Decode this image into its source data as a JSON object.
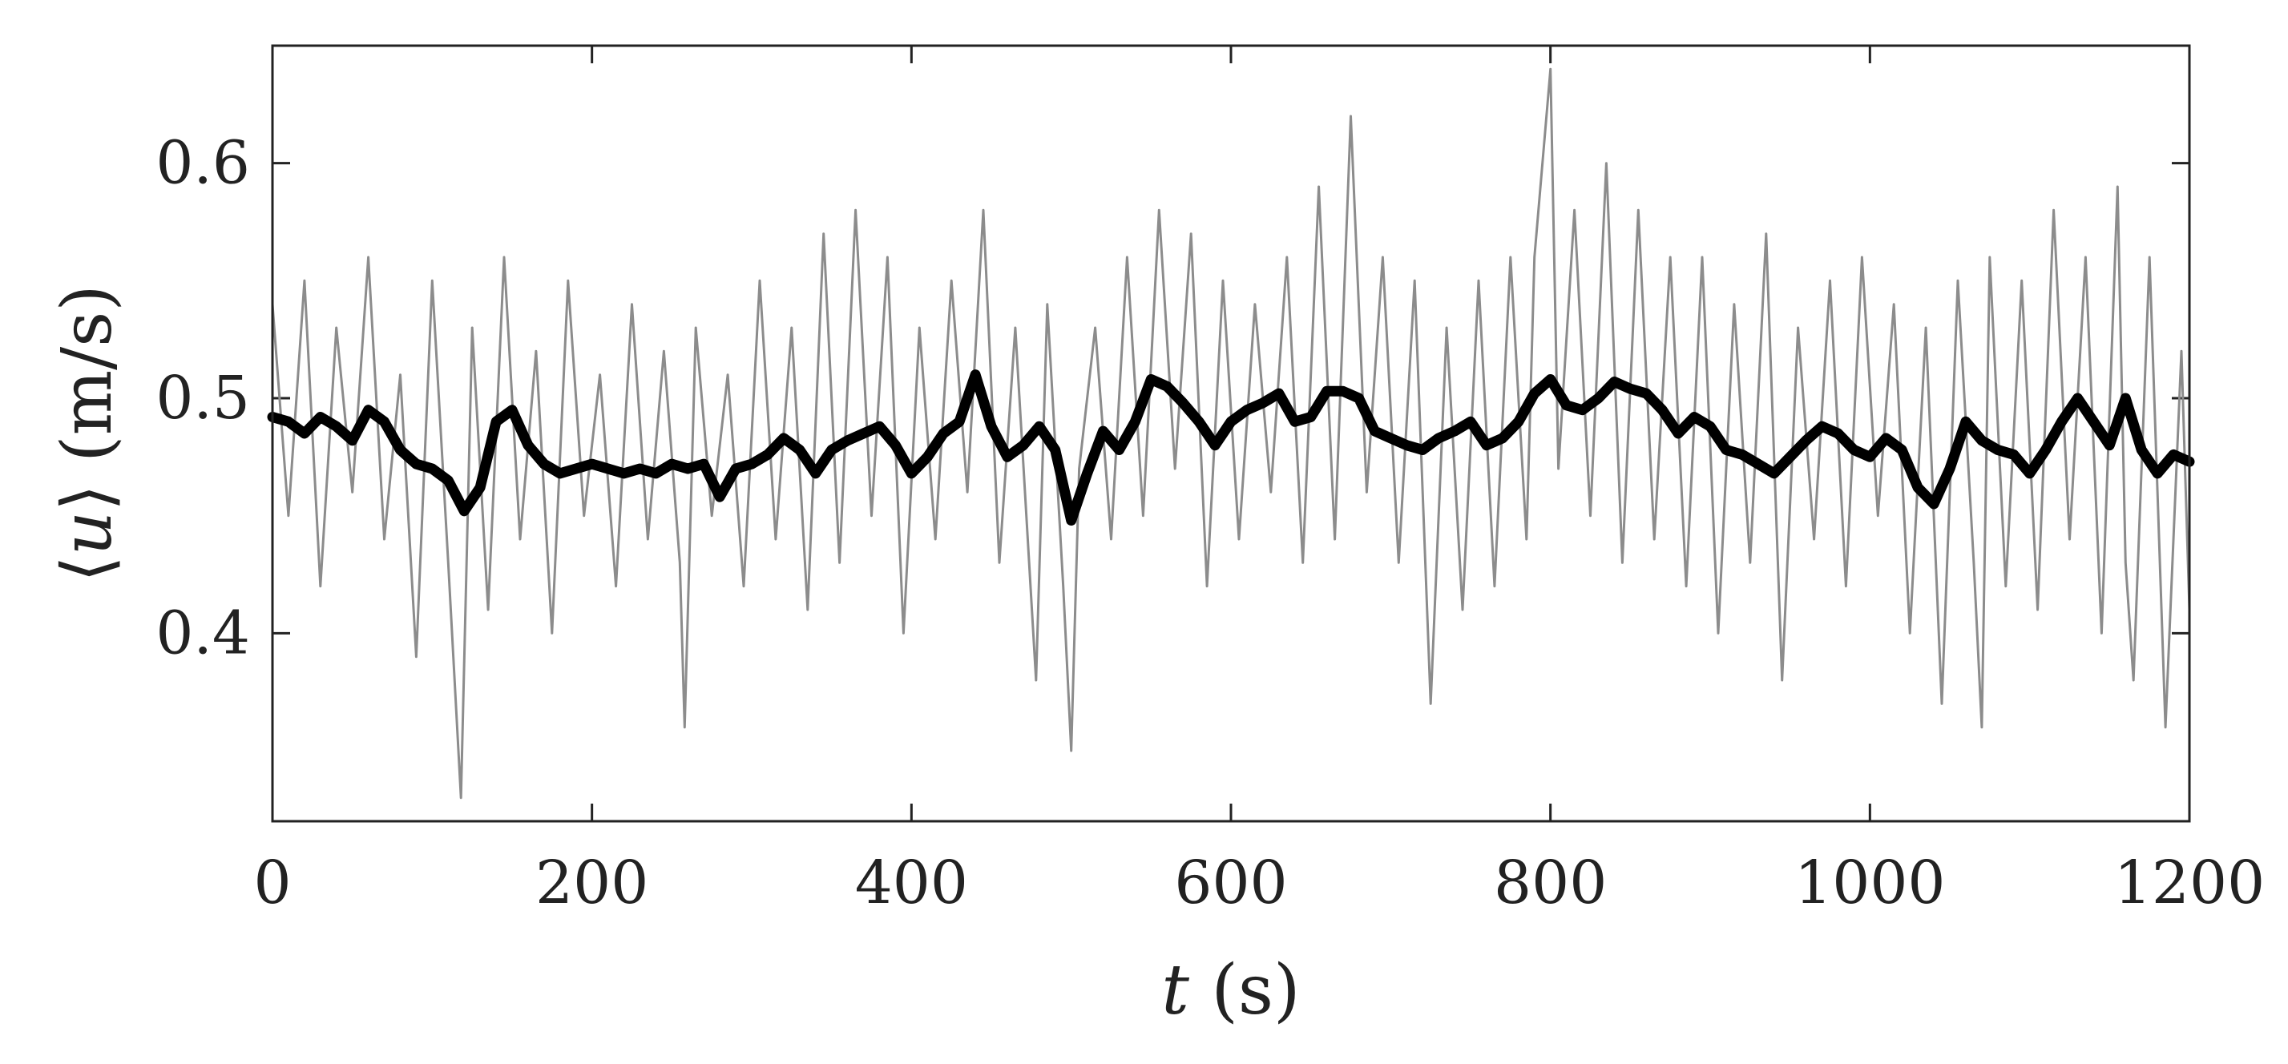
{
  "chart_data": {
    "type": "line",
    "title": "",
    "xlabel": {
      "var": "t",
      "unit": " (s)"
    },
    "ylabel": {
      "open": "⟨",
      "var": "u",
      "close": "⟩",
      "unit": " (m/s)"
    },
    "xlim": [
      0,
      1200
    ],
    "ylim": [
      0.32,
      0.65
    ],
    "xticks": [
      0,
      200,
      400,
      600,
      800,
      1000,
      1200
    ],
    "xtick_labels": [
      "0",
      "200",
      "400",
      "600",
      "800",
      "1000",
      "1200"
    ],
    "yticks": [
      0.4,
      0.5,
      0.6
    ],
    "ytick_labels": [
      "0.4",
      "0.5",
      "0.6"
    ],
    "grid": false,
    "legend": "none",
    "colors": {
      "raw": "#8c8c8c",
      "smoothed": "#000000",
      "axes": "#222222"
    },
    "series": [
      {
        "style": "raw-thin-gray",
        "x": [
          0,
          10,
          20,
          30,
          40,
          50,
          60,
          70,
          80,
          90,
          100,
          110,
          118,
          125,
          135,
          145,
          155,
          165,
          175,
          185,
          195,
          205,
          215,
          225,
          235,
          245,
          255,
          258,
          265,
          275,
          285,
          295,
          305,
          315,
          325,
          335,
          345,
          355,
          365,
          375,
          385,
          395,
          405,
          415,
          425,
          435,
          445,
          455,
          465,
          478,
          485,
          495,
          500,
          505,
          515,
          525,
          535,
          545,
          555,
          565,
          575,
          585,
          595,
          605,
          615,
          625,
          635,
          645,
          655,
          665,
          675,
          685,
          695,
          705,
          715,
          725,
          735,
          745,
          755,
          765,
          775,
          785,
          790,
          800,
          805,
          815,
          825,
          835,
          845,
          855,
          865,
          875,
          885,
          895,
          905,
          915,
          925,
          935,
          945,
          955,
          965,
          975,
          985,
          995,
          1005,
          1015,
          1025,
          1035,
          1045,
          1055,
          1065,
          1070,
          1075,
          1085,
          1095,
          1105,
          1115,
          1125,
          1135,
          1145,
          1155,
          1160,
          1165,
          1175,
          1185,
          1195,
          1200
        ],
        "y": [
          0.54,
          0.45,
          0.55,
          0.42,
          0.53,
          0.46,
          0.56,
          0.44,
          0.51,
          0.39,
          0.55,
          0.43,
          0.33,
          0.53,
          0.41,
          0.56,
          0.44,
          0.52,
          0.4,
          0.55,
          0.45,
          0.51,
          0.42,
          0.54,
          0.44,
          0.52,
          0.43,
          0.36,
          0.53,
          0.45,
          0.51,
          0.42,
          0.55,
          0.44,
          0.53,
          0.41,
          0.57,
          0.43,
          0.58,
          0.45,
          0.56,
          0.4,
          0.53,
          0.44,
          0.55,
          0.46,
          0.58,
          0.43,
          0.53,
          0.38,
          0.54,
          0.42,
          0.35,
          0.47,
          0.53,
          0.44,
          0.56,
          0.45,
          0.58,
          0.47,
          0.57,
          0.42,
          0.55,
          0.44,
          0.54,
          0.46,
          0.56,
          0.43,
          0.59,
          0.44,
          0.62,
          0.46,
          0.56,
          0.43,
          0.55,
          0.37,
          0.53,
          0.41,
          0.55,
          0.42,
          0.56,
          0.44,
          0.56,
          0.64,
          0.47,
          0.58,
          0.45,
          0.6,
          0.43,
          0.58,
          0.44,
          0.56,
          0.42,
          0.56,
          0.4,
          0.54,
          0.43,
          0.57,
          0.38,
          0.53,
          0.44,
          0.55,
          0.42,
          0.56,
          0.45,
          0.54,
          0.4,
          0.53,
          0.37,
          0.55,
          0.43,
          0.36,
          0.56,
          0.42,
          0.55,
          0.41,
          0.58,
          0.44,
          0.56,
          0.4,
          0.59,
          0.43,
          0.38,
          0.56,
          0.36,
          0.52,
          0.41
        ]
      },
      {
        "style": "smoothed-thick-black",
        "x": [
          0,
          10,
          20,
          30,
          40,
          50,
          60,
          70,
          80,
          90,
          100,
          110,
          120,
          130,
          140,
          150,
          160,
          170,
          180,
          190,
          200,
          210,
          220,
          230,
          240,
          250,
          260,
          270,
          280,
          290,
          300,
          310,
          320,
          330,
          340,
          350,
          360,
          370,
          380,
          390,
          400,
          410,
          420,
          430,
          440,
          450,
          460,
          470,
          480,
          490,
          500,
          510,
          520,
          530,
          540,
          550,
          560,
          570,
          580,
          590,
          600,
          610,
          620,
          630,
          640,
          650,
          660,
          670,
          680,
          690,
          700,
          710,
          720,
          730,
          740,
          750,
          760,
          770,
          780,
          790,
          800,
          810,
          820,
          830,
          840,
          850,
          860,
          870,
          880,
          890,
          900,
          910,
          920,
          930,
          940,
          950,
          960,
          970,
          980,
          990,
          1000,
          1010,
          1020,
          1030,
          1040,
          1050,
          1060,
          1070,
          1080,
          1090,
          1100,
          1110,
          1120,
          1130,
          1140,
          1150,
          1160,
          1170,
          1180,
          1190,
          1200
        ],
        "y": [
          0.492,
          0.49,
          0.485,
          0.492,
          0.488,
          0.482,
          0.495,
          0.49,
          0.478,
          0.472,
          0.47,
          0.465,
          0.452,
          0.462,
          0.49,
          0.495,
          0.48,
          0.472,
          0.468,
          0.47,
          0.472,
          0.47,
          0.468,
          0.47,
          0.468,
          0.472,
          0.47,
          0.472,
          0.458,
          0.47,
          0.472,
          0.476,
          0.483,
          0.478,
          0.468,
          0.478,
          0.482,
          0.485,
          0.488,
          0.48,
          0.468,
          0.475,
          0.485,
          0.49,
          0.51,
          0.488,
          0.475,
          0.48,
          0.488,
          0.478,
          0.448,
          0.468,
          0.486,
          0.478,
          0.49,
          0.508,
          0.505,
          0.498,
          0.49,
          0.48,
          0.49,
          0.495,
          0.498,
          0.502,
          0.49,
          0.492,
          0.503,
          0.503,
          0.5,
          0.486,
          0.483,
          0.48,
          0.478,
          0.483,
          0.486,
          0.49,
          0.48,
          0.483,
          0.49,
          0.502,
          0.508,
          0.497,
          0.495,
          0.5,
          0.507,
          0.504,
          0.502,
          0.495,
          0.485,
          0.492,
          0.488,
          0.478,
          0.476,
          0.472,
          0.468,
          0.475,
          0.482,
          0.488,
          0.485,
          0.478,
          0.475,
          0.483,
          0.478,
          0.462,
          0.455,
          0.47,
          0.49,
          0.482,
          0.478,
          0.476,
          0.468,
          0.478,
          0.49,
          0.5,
          0.49,
          0.48,
          0.5,
          0.478,
          0.468,
          0.476,
          0.473
        ]
      }
    ]
  }
}
